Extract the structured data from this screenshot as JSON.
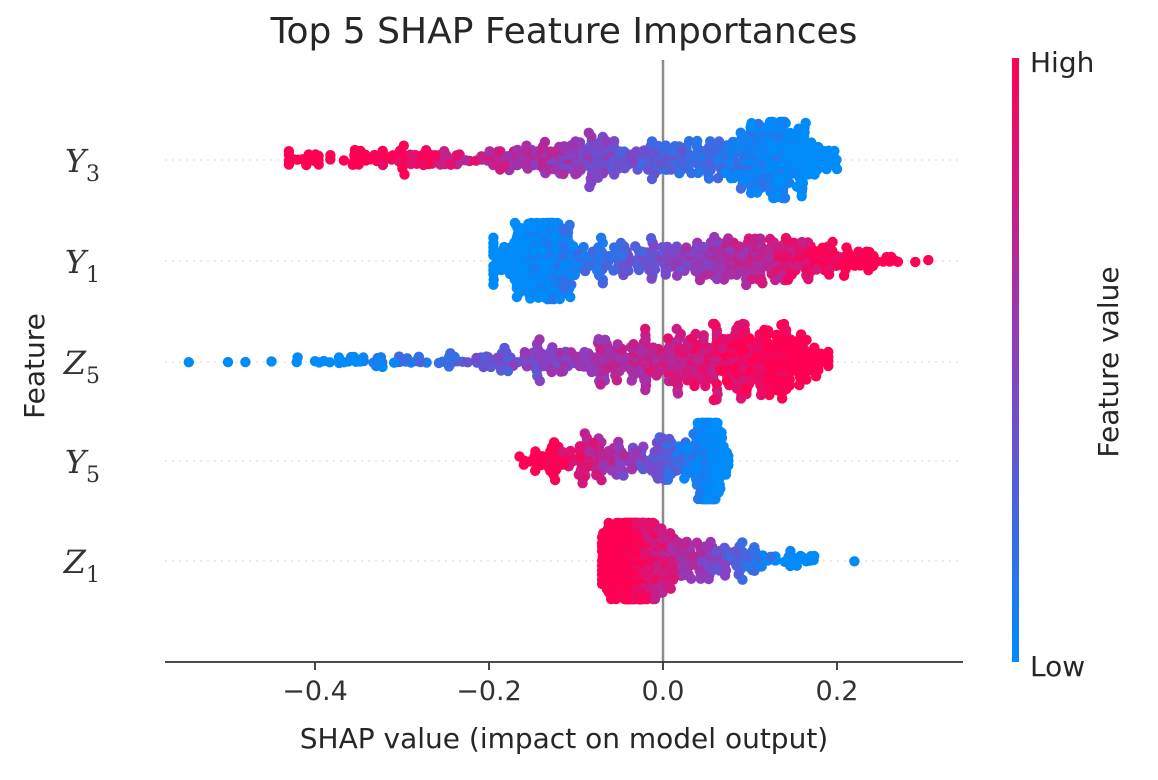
{
  "chart_data": {
    "type": "scatter",
    "subtype": "shap-beeswarm",
    "title": "Top 5 SHAP Feature Importances",
    "xlabel": "SHAP value (impact on model output)",
    "ylabel": "Feature",
    "xlim": [
      -0.575,
      0.345
    ],
    "xticks": [
      -0.4,
      -0.2,
      0.0,
      0.2
    ],
    "xtick_labels": [
      "−0.4",
      "−0.2",
      "0.0",
      "0.2"
    ],
    "colorbar": {
      "label": "Feature value",
      "high_label": "High",
      "low_label": "Low",
      "high_color": "#ff0052",
      "low_color": "#008bfb"
    },
    "features": [
      {
        "base": "Y",
        "sub": "3",
        "shap_min": -0.43,
        "shap_max": 0.2,
        "low_value_region": [
          0.06,
          0.2
        ],
        "high_value_region": [
          -0.43,
          -0.2
        ]
      },
      {
        "base": "Y",
        "sub": "1",
        "shap_min": -0.195,
        "shap_max": 0.305,
        "low_value_region": [
          -0.195,
          -0.09
        ],
        "high_value_region": [
          0.1,
          0.305
        ]
      },
      {
        "base": "Z",
        "sub": "5",
        "shap_min": -0.545,
        "shap_max": 0.19,
        "low_value_region": [
          -0.545,
          -0.2
        ],
        "high_value_region": [
          0.05,
          0.19
        ]
      },
      {
        "base": "Y",
        "sub": "5",
        "shap_min": -0.165,
        "shap_max": 0.075,
        "low_value_region": [
          0.02,
          0.075
        ],
        "high_value_region": [
          -0.165,
          -0.08
        ]
      },
      {
        "base": "Z",
        "sub": "1",
        "shap_min": -0.07,
        "shap_max": 0.22,
        "low_value_region": [
          0.05,
          0.22
        ],
        "high_value_region": [
          -0.07,
          0.0
        ]
      }
    ]
  }
}
